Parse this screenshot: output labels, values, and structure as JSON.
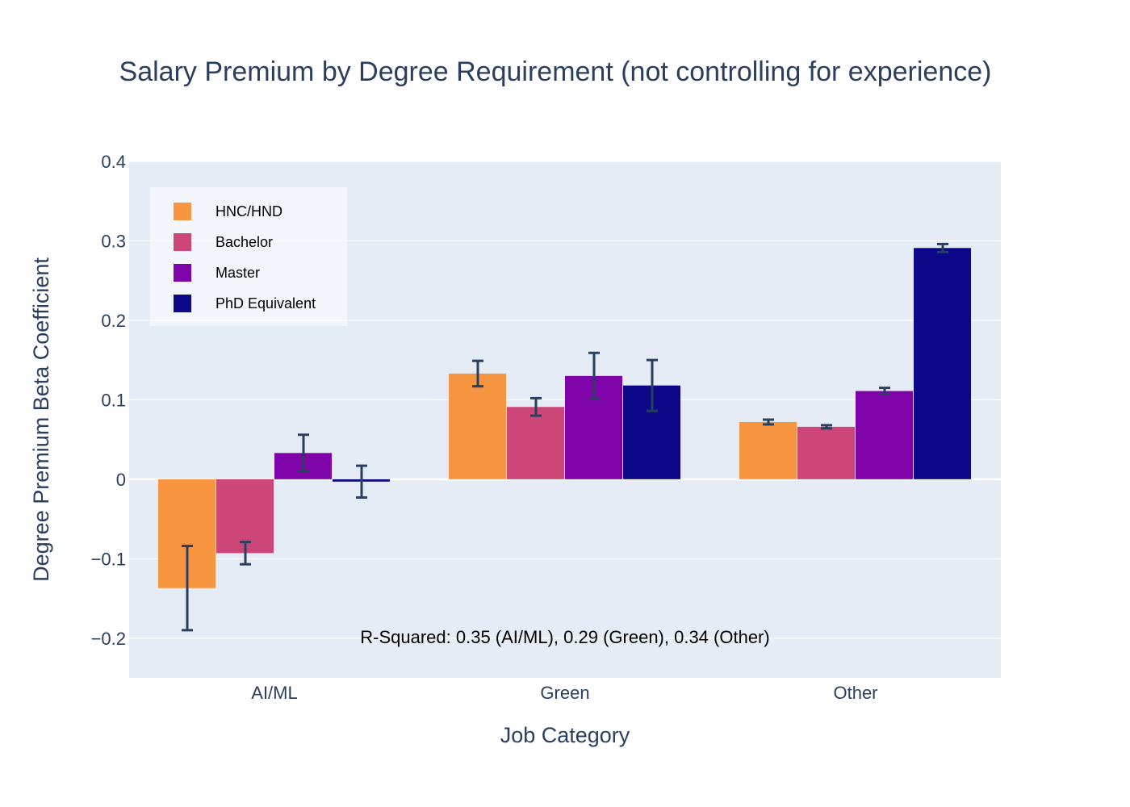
{
  "chart_data": {
    "type": "bar",
    "title": "Salary Premium by Degree Requirement (not controlling for experience)",
    "xlabel": "Job Category",
    "ylabel": "Degree Premium Beta Coefficient",
    "categories": [
      "AI/ML",
      "Green",
      "Other"
    ],
    "ylim": [
      -0.25,
      0.4
    ],
    "yticks": [
      -0.2,
      -0.1,
      0,
      0.1,
      0.2,
      0.3,
      0.4
    ],
    "ytick_labels": [
      "−0.2",
      "−0.1",
      "0",
      "0.1",
      "0.2",
      "0.3",
      "0.4"
    ],
    "grid": true,
    "legend_position": "top-left",
    "series": [
      {
        "name": "HNC/HND",
        "color": "#f89540",
        "values": [
          -0.137,
          0.133,
          0.072
        ],
        "error": [
          0.053,
          0.016,
          0.003
        ]
      },
      {
        "name": "Bachelor",
        "color": "#cc4778",
        "values": [
          -0.093,
          0.091,
          0.066
        ],
        "error": [
          0.014,
          0.011,
          0.002
        ]
      },
      {
        "name": "Master",
        "color": "#7e03a8",
        "values": [
          0.033,
          0.13,
          0.111
        ],
        "error": [
          0.023,
          0.029,
          0.004
        ]
      },
      {
        "name": "PhD Equivalent",
        "color": "#0d0887",
        "values": [
          -0.003,
          0.118,
          0.291
        ],
        "error": [
          0.02,
          0.032,
          0.005
        ]
      }
    ],
    "annotation": "R-Squared: 0.35 (AI/ML), 0.29 (Green), 0.34 (Other)",
    "plot_background": "#e5ecf6",
    "error_bar_color": "#2a3f5f"
  }
}
